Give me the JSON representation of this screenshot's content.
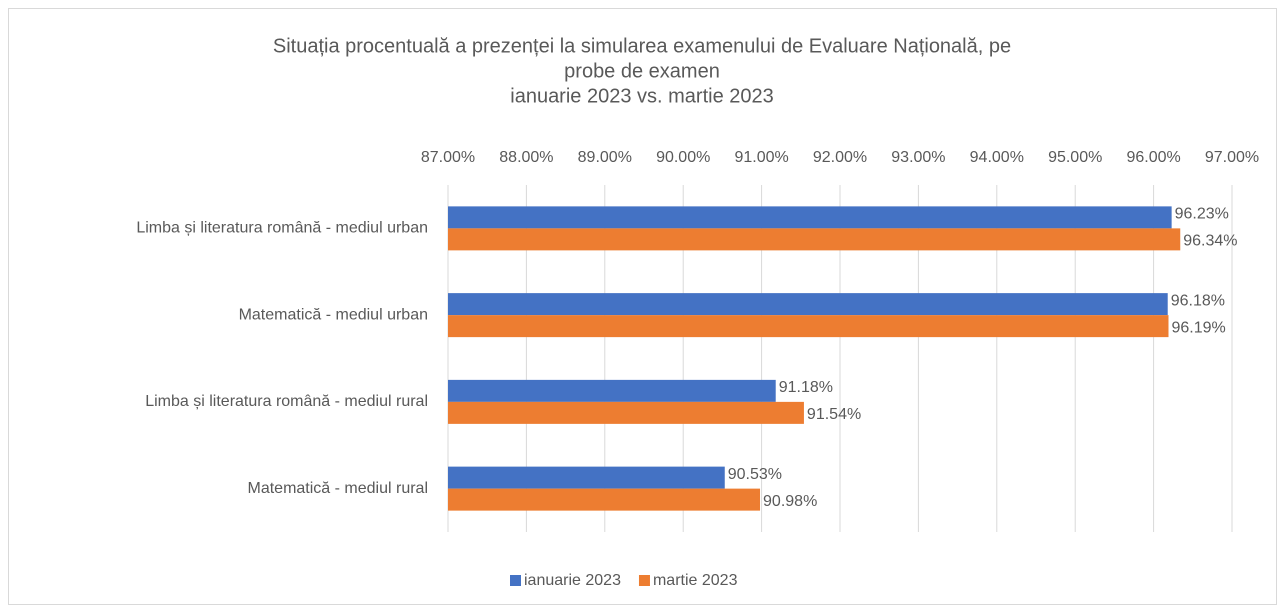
{
  "chart_data": {
    "type": "bar",
    "orientation": "horizontal",
    "title": [
      "Situația procentuală a prezenței la simularea examenului de Evaluare Națională, pe",
      "probe de examen",
      "ianuarie 2023 vs. martie 2023"
    ],
    "categories": [
      "Limba și literatura română - mediul urban",
      "Matematică - mediul urban",
      "Limba și literatura română - mediul rural",
      "Matematică - mediul rural"
    ],
    "series": [
      {
        "name": "ianuarie 2023",
        "color": "#4472c4",
        "values": [
          96.23,
          96.18,
          91.18,
          90.53
        ],
        "value_labels": [
          "96.23%",
          "96.18%",
          "91.18%",
          "90.53%"
        ]
      },
      {
        "name": "martie 2023",
        "color": "#ed7d31",
        "values": [
          96.34,
          96.19,
          91.54,
          90.98
        ],
        "value_labels": [
          "96.34%",
          "96.19%",
          "91.54%",
          "90.98%"
        ]
      }
    ],
    "xlim": [
      87,
      97
    ],
    "xticks": [
      {
        "value": 87,
        "label": "87.00%"
      },
      {
        "value": 88,
        "label": "88.00%"
      },
      {
        "value": 89,
        "label": "89.00%"
      },
      {
        "value": 90,
        "label": "90.00%"
      },
      {
        "value": 91,
        "label": "91.00%"
      },
      {
        "value": 92,
        "label": "92.00%"
      },
      {
        "value": 93,
        "label": "93.00%"
      },
      {
        "value": 94,
        "label": "94.00%"
      },
      {
        "value": 95,
        "label": "95.00%"
      },
      {
        "value": 96,
        "label": "96.00%"
      },
      {
        "value": 97,
        "label": "97.00%"
      }
    ],
    "grid": true,
    "legend": "bottom"
  }
}
